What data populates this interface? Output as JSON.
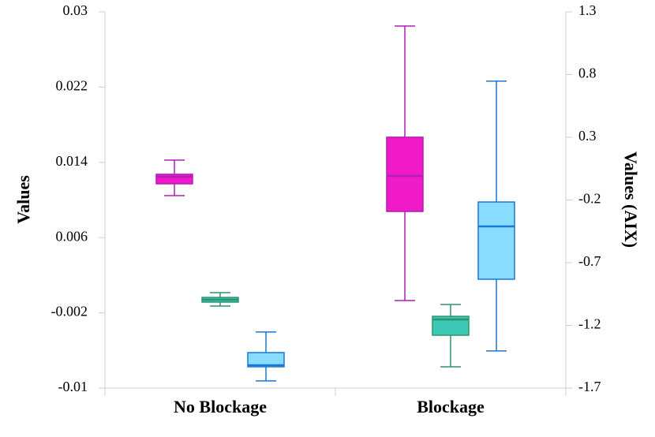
{
  "chart_data": {
    "type": "box",
    "y_label": "Values",
    "y2_label": "Values (AIX)",
    "categories": [
      "No Blockage",
      "Blockage"
    ],
    "ylim": [
      -0.01,
      0.03
    ],
    "yticks": [
      -0.01,
      -0.002,
      0.006,
      0.014,
      0.022,
      0.03
    ],
    "y2lim": [
      -1.7,
      1.3
    ],
    "y2ticks": [
      -1.7,
      -1.2,
      -0.7,
      -0.2,
      0.3,
      0.8,
      1.3
    ],
    "grid": false,
    "series": [
      {
        "color": "#f01ac8",
        "edge": "#b21cb8",
        "values": [
          {
            "min": 0.01046,
            "q1": 0.01172,
            "median": 0.01247,
            "q3": 0.01273,
            "max": 0.01423
          },
          {
            "min": -0.00069,
            "q1": 0.00878,
            "median": 0.01256,
            "q3": 0.01667,
            "max": 0.02849
          }
        ]
      },
      {
        "color": "#3cc8b4",
        "edge": "#2e9470",
        "values": [
          {
            "min": -0.00128,
            "q1": -0.00086,
            "median": -0.00061,
            "q3": -0.00036,
            "max": 0.00015
          },
          {
            "min": -0.00774,
            "q1": -0.00438,
            "median": -0.0027,
            "q3": -0.00237,
            "max": -0.00111
          }
        ]
      },
      {
        "color": "#88dcff",
        "edge": "#1a78d0",
        "axis": "y2",
        "values": [
          {
            "min": -1.643,
            "q1": -1.53,
            "median": -1.518,
            "q3": -1.417,
            "max": -1.253
          },
          {
            "min": -1.404,
            "q1": -0.832,
            "median": -0.411,
            "q3": -0.216,
            "max": 0.747
          }
        ]
      }
    ]
  }
}
